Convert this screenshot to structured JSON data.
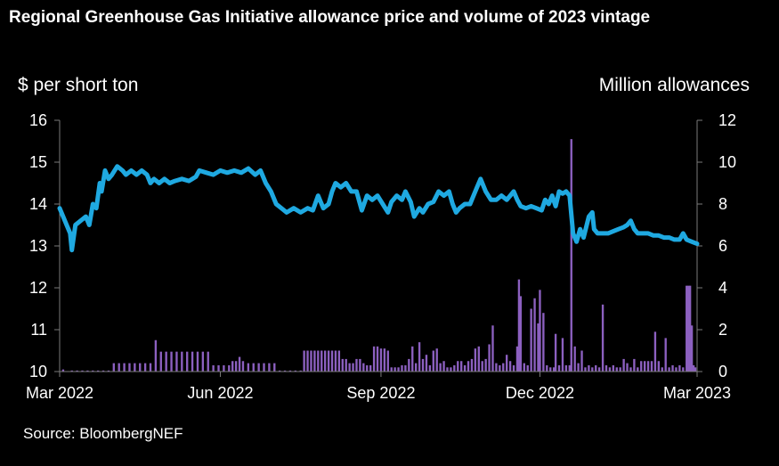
{
  "chart_data": {
    "type": "bar+line",
    "title": "Regional Greenhouse Gas Initiative allowance price and volume of 2023 vintage",
    "ylabel": "$ per short ton",
    "y2label": "Million allowances",
    "ylim": [
      10,
      16
    ],
    "yticks": [
      "10",
      "11",
      "12",
      "13",
      "14",
      "15",
      "16"
    ],
    "y2lim": [
      0,
      12
    ],
    "y2ticks": [
      "0",
      "2",
      "4",
      "6",
      "8",
      "10",
      "12"
    ],
    "xlim": [
      0,
      365
    ],
    "xticks": [
      {
        "label": "Mar 2022",
        "day": 0
      },
      {
        "label": "Jun 2022",
        "day": 92
      },
      {
        "label": "Sep 2022",
        "day": 184
      },
      {
        "label": "Dec 2022",
        "day": 275
      },
      {
        "label": "Mar 2023",
        "day": 365
      }
    ],
    "series": [
      {
        "name": "Price",
        "axis": "left",
        "unit": "$ per short ton",
        "color": "#1fa9e1",
        "points": [
          [
            0,
            13.9
          ],
          [
            3,
            13.6
          ],
          [
            6,
            13.3
          ],
          [
            7,
            12.9
          ],
          [
            9,
            13.5
          ],
          [
            12,
            13.6
          ],
          [
            15,
            13.7
          ],
          [
            17,
            13.5
          ],
          [
            19,
            14.0
          ],
          [
            21,
            13.9
          ],
          [
            23,
            14.5
          ],
          [
            24,
            14.3
          ],
          [
            26,
            14.8
          ],
          [
            28,
            14.6
          ],
          [
            30,
            14.7
          ],
          [
            33,
            14.9
          ],
          [
            36,
            14.8
          ],
          [
            38,
            14.7
          ],
          [
            41,
            14.8
          ],
          [
            44,
            14.7
          ],
          [
            47,
            14.8
          ],
          [
            50,
            14.7
          ],
          [
            52,
            14.5
          ],
          [
            54,
            14.6
          ],
          [
            57,
            14.5
          ],
          [
            60,
            14.6
          ],
          [
            63,
            14.5
          ],
          [
            66,
            14.55
          ],
          [
            70,
            14.6
          ],
          [
            74,
            14.55
          ],
          [
            78,
            14.65
          ],
          [
            80,
            14.8
          ],
          [
            84,
            14.75
          ],
          [
            88,
            14.7
          ],
          [
            92,
            14.8
          ],
          [
            96,
            14.75
          ],
          [
            100,
            14.8
          ],
          [
            104,
            14.75
          ],
          [
            108,
            14.85
          ],
          [
            112,
            14.7
          ],
          [
            115,
            14.8
          ],
          [
            118,
            14.5
          ],
          [
            121,
            14.3
          ],
          [
            124,
            14.0
          ],
          [
            127,
            13.9
          ],
          [
            130,
            13.8
          ],
          [
            134,
            13.9
          ],
          [
            138,
            13.8
          ],
          [
            142,
            13.9
          ],
          [
            145,
            13.85
          ],
          [
            148,
            14.2
          ],
          [
            151,
            13.9
          ],
          [
            154,
            14.0
          ],
          [
            156,
            14.3
          ],
          [
            158,
            14.5
          ],
          [
            161,
            14.4
          ],
          [
            164,
            14.5
          ],
          [
            167,
            14.3
          ],
          [
            170,
            14.3
          ],
          [
            173,
            13.85
          ],
          [
            176,
            14.2
          ],
          [
            179,
            14.1
          ],
          [
            182,
            14.2
          ],
          [
            185,
            14.0
          ],
          [
            188,
            13.8
          ],
          [
            190,
            14.05
          ],
          [
            193,
            14.2
          ],
          [
            196,
            14.1
          ],
          [
            198,
            14.3
          ],
          [
            201,
            14.05
          ],
          [
            203,
            13.7
          ],
          [
            206,
            13.9
          ],
          [
            208,
            13.8
          ],
          [
            211,
            14.0
          ],
          [
            214,
            14.05
          ],
          [
            217,
            14.3
          ],
          [
            220,
            14.2
          ],
          [
            223,
            14.3
          ],
          [
            225,
            14.0
          ],
          [
            227,
            13.8
          ],
          [
            229,
            13.9
          ],
          [
            232,
            14.0
          ],
          [
            235,
            14.0
          ],
          [
            237,
            14.2
          ],
          [
            239,
            14.4
          ],
          [
            241,
            14.6
          ],
          [
            244,
            14.3
          ],
          [
            247,
            14.1
          ],
          [
            250,
            14.1
          ],
          [
            253,
            14.2
          ],
          [
            256,
            14.1
          ],
          [
            258,
            14.2
          ],
          [
            260,
            14.3
          ],
          [
            262,
            14.1
          ],
          [
            264,
            13.95
          ],
          [
            267,
            13.9
          ],
          [
            270,
            13.95
          ],
          [
            273,
            13.9
          ],
          [
            276,
            13.85
          ],
          [
            278,
            14.1
          ],
          [
            280,
            14.0
          ],
          [
            282,
            14.2
          ],
          [
            284,
            13.95
          ],
          [
            286,
            14.3
          ],
          [
            288,
            14.25
          ],
          [
            290,
            14.3
          ],
          [
            292,
            14.2
          ],
          [
            294,
            13.3
          ],
          [
            296,
            13.1
          ],
          [
            298,
            13.4
          ],
          [
            300,
            13.2
          ],
          [
            303,
            13.7
          ],
          [
            305,
            13.8
          ],
          [
            306,
            13.4
          ],
          [
            308,
            13.3
          ],
          [
            311,
            13.3
          ],
          [
            314,
            13.3
          ],
          [
            317,
            13.35
          ],
          [
            320,
            13.4
          ],
          [
            323,
            13.45
          ],
          [
            325,
            13.5
          ],
          [
            327,
            13.6
          ],
          [
            329,
            13.4
          ],
          [
            331,
            13.3
          ],
          [
            334,
            13.3
          ],
          [
            337,
            13.3
          ],
          [
            340,
            13.25
          ],
          [
            343,
            13.25
          ],
          [
            346,
            13.2
          ],
          [
            349,
            13.2
          ],
          [
            352,
            13.15
          ],
          [
            355,
            13.15
          ],
          [
            357,
            13.3
          ],
          [
            359,
            13.15
          ],
          [
            362,
            13.1
          ],
          [
            365,
            13.05
          ]
        ]
      },
      {
        "name": "Volume",
        "axis": "right",
        "unit": "Million allowances",
        "color": "#8c60c0",
        "points": [
          [
            2,
            0.1
          ],
          [
            7,
            0.05
          ],
          [
            10,
            0.05
          ],
          [
            13,
            0.05
          ],
          [
            16,
            0.05
          ],
          [
            19,
            0.05
          ],
          [
            22,
            0.05
          ],
          [
            25,
            0.05
          ],
          [
            28,
            0.05
          ],
          [
            31,
            0.4
          ],
          [
            34,
            0.4
          ],
          [
            37,
            0.4
          ],
          [
            40,
            0.4
          ],
          [
            43,
            0.4
          ],
          [
            46,
            0.4
          ],
          [
            49,
            0.4
          ],
          [
            52,
            0.4
          ],
          [
            55,
            1.5
          ],
          [
            58,
            0.95
          ],
          [
            61,
            0.95
          ],
          [
            64,
            0.95
          ],
          [
            67,
            0.95
          ],
          [
            70,
            0.95
          ],
          [
            73,
            0.95
          ],
          [
            76,
            0.95
          ],
          [
            79,
            0.95
          ],
          [
            82,
            0.95
          ],
          [
            85,
            0.95
          ],
          [
            88,
            0.3
          ],
          [
            91,
            0.3
          ],
          [
            94,
            0.3
          ],
          [
            97,
            0.3
          ],
          [
            99,
            0.5
          ],
          [
            101,
            0.5
          ],
          [
            103,
            0.7
          ],
          [
            105,
            0.5
          ],
          [
            108,
            0.4
          ],
          [
            111,
            0.4
          ],
          [
            114,
            0.4
          ],
          [
            117,
            0.4
          ],
          [
            120,
            0.4
          ],
          [
            123,
            0.4
          ],
          [
            126,
            0.05
          ],
          [
            129,
            0.05
          ],
          [
            132,
            0.05
          ],
          [
            135,
            0.05
          ],
          [
            138,
            0.05
          ],
          [
            140,
            1.0
          ],
          [
            142,
            1.0
          ],
          [
            144,
            1.0
          ],
          [
            146,
            1.0
          ],
          [
            148,
            1.0
          ],
          [
            150,
            1.0
          ],
          [
            152,
            1.0
          ],
          [
            154,
            1.0
          ],
          [
            156,
            1.0
          ],
          [
            158,
            1.0
          ],
          [
            160,
            1.0
          ],
          [
            162,
            0.6
          ],
          [
            164,
            0.6
          ],
          [
            166,
            0.4
          ],
          [
            168,
            0.4
          ],
          [
            170,
            0.6
          ],
          [
            172,
            0.6
          ],
          [
            174,
            0.4
          ],
          [
            176,
            0.3
          ],
          [
            178,
            0.3
          ],
          [
            180,
            1.2
          ],
          [
            182,
            1.2
          ],
          [
            184,
            1.1
          ],
          [
            186,
            1.1
          ],
          [
            188,
            1.0
          ],
          [
            190,
            0.2
          ],
          [
            192,
            0.2
          ],
          [
            194,
            0.2
          ],
          [
            196,
            0.3
          ],
          [
            198,
            0.3
          ],
          [
            200,
            0.6
          ],
          [
            202,
            1.2
          ],
          [
            204,
            0.4
          ],
          [
            206,
            1.4
          ],
          [
            208,
            0.6
          ],
          [
            210,
            0.8
          ],
          [
            212,
            0.3
          ],
          [
            214,
            1.0
          ],
          [
            216,
            1.1
          ],
          [
            218,
            0.4
          ],
          [
            220,
            0.5
          ],
          [
            222,
            0.2
          ],
          [
            224,
            0.2
          ],
          [
            226,
            0.3
          ],
          [
            228,
            0.5
          ],
          [
            230,
            0.5
          ],
          [
            232,
            0.3
          ],
          [
            234,
            0.5
          ],
          [
            236,
            0.6
          ],
          [
            238,
            1.1
          ],
          [
            240,
            1.2
          ],
          [
            242,
            0.5
          ],
          [
            244,
            0.6
          ],
          [
            246,
            1.3
          ],
          [
            248,
            2.2
          ],
          [
            250,
            0.4
          ],
          [
            252,
            0.3
          ],
          [
            254,
            0.4
          ],
          [
            256,
            0.8
          ],
          [
            258,
            0.5
          ],
          [
            260,
            0.3
          ],
          [
            262,
            1.2
          ],
          [
            263,
            4.4
          ],
          [
            264,
            3.6
          ],
          [
            266,
            0.4
          ],
          [
            268,
            0.3
          ],
          [
            270,
            3.0
          ],
          [
            272,
            3.5
          ],
          [
            274,
            2.3
          ],
          [
            275,
            3.9
          ],
          [
            277,
            2.8
          ],
          [
            279,
            0.3
          ],
          [
            281,
            0.2
          ],
          [
            283,
            0.2
          ],
          [
            284,
            1.8
          ],
          [
            286,
            0.3
          ],
          [
            288,
            1.6
          ],
          [
            290,
            0.3
          ],
          [
            292,
            0.3
          ],
          [
            293,
            11.1
          ],
          [
            295,
            1.2
          ],
          [
            297,
            0.4
          ],
          [
            299,
            1.0
          ],
          [
            301,
            0.2
          ],
          [
            303,
            0.3
          ],
          [
            305,
            0.2
          ],
          [
            307,
            0.3
          ],
          [
            309,
            0.2
          ],
          [
            311,
            3.2
          ],
          [
            313,
            0.3
          ],
          [
            315,
            0.2
          ],
          [
            317,
            0.3
          ],
          [
            319,
            0.2
          ],
          [
            321,
            0.2
          ],
          [
            323,
            0.6
          ],
          [
            325,
            0.4
          ],
          [
            327,
            0.2
          ],
          [
            329,
            0.6
          ],
          [
            331,
            0.2
          ],
          [
            333,
            0.5
          ],
          [
            335,
            0.5
          ],
          [
            337,
            0.5
          ],
          [
            339,
            0.5
          ],
          [
            341,
            1.9
          ],
          [
            343,
            0.5
          ],
          [
            345,
            0.2
          ],
          [
            347,
            1.6
          ],
          [
            349,
            0.2
          ],
          [
            351,
            0.3
          ],
          [
            353,
            0.2
          ],
          [
            355,
            0.3
          ],
          [
            357,
            0.2
          ],
          [
            359,
            4.1
          ],
          [
            360,
            4.1
          ],
          [
            361,
            4.1
          ],
          [
            362,
            2.2
          ],
          [
            363,
            0.3
          ],
          [
            364,
            0.2
          ]
        ]
      }
    ]
  },
  "source": "Source: BloombergNEF"
}
